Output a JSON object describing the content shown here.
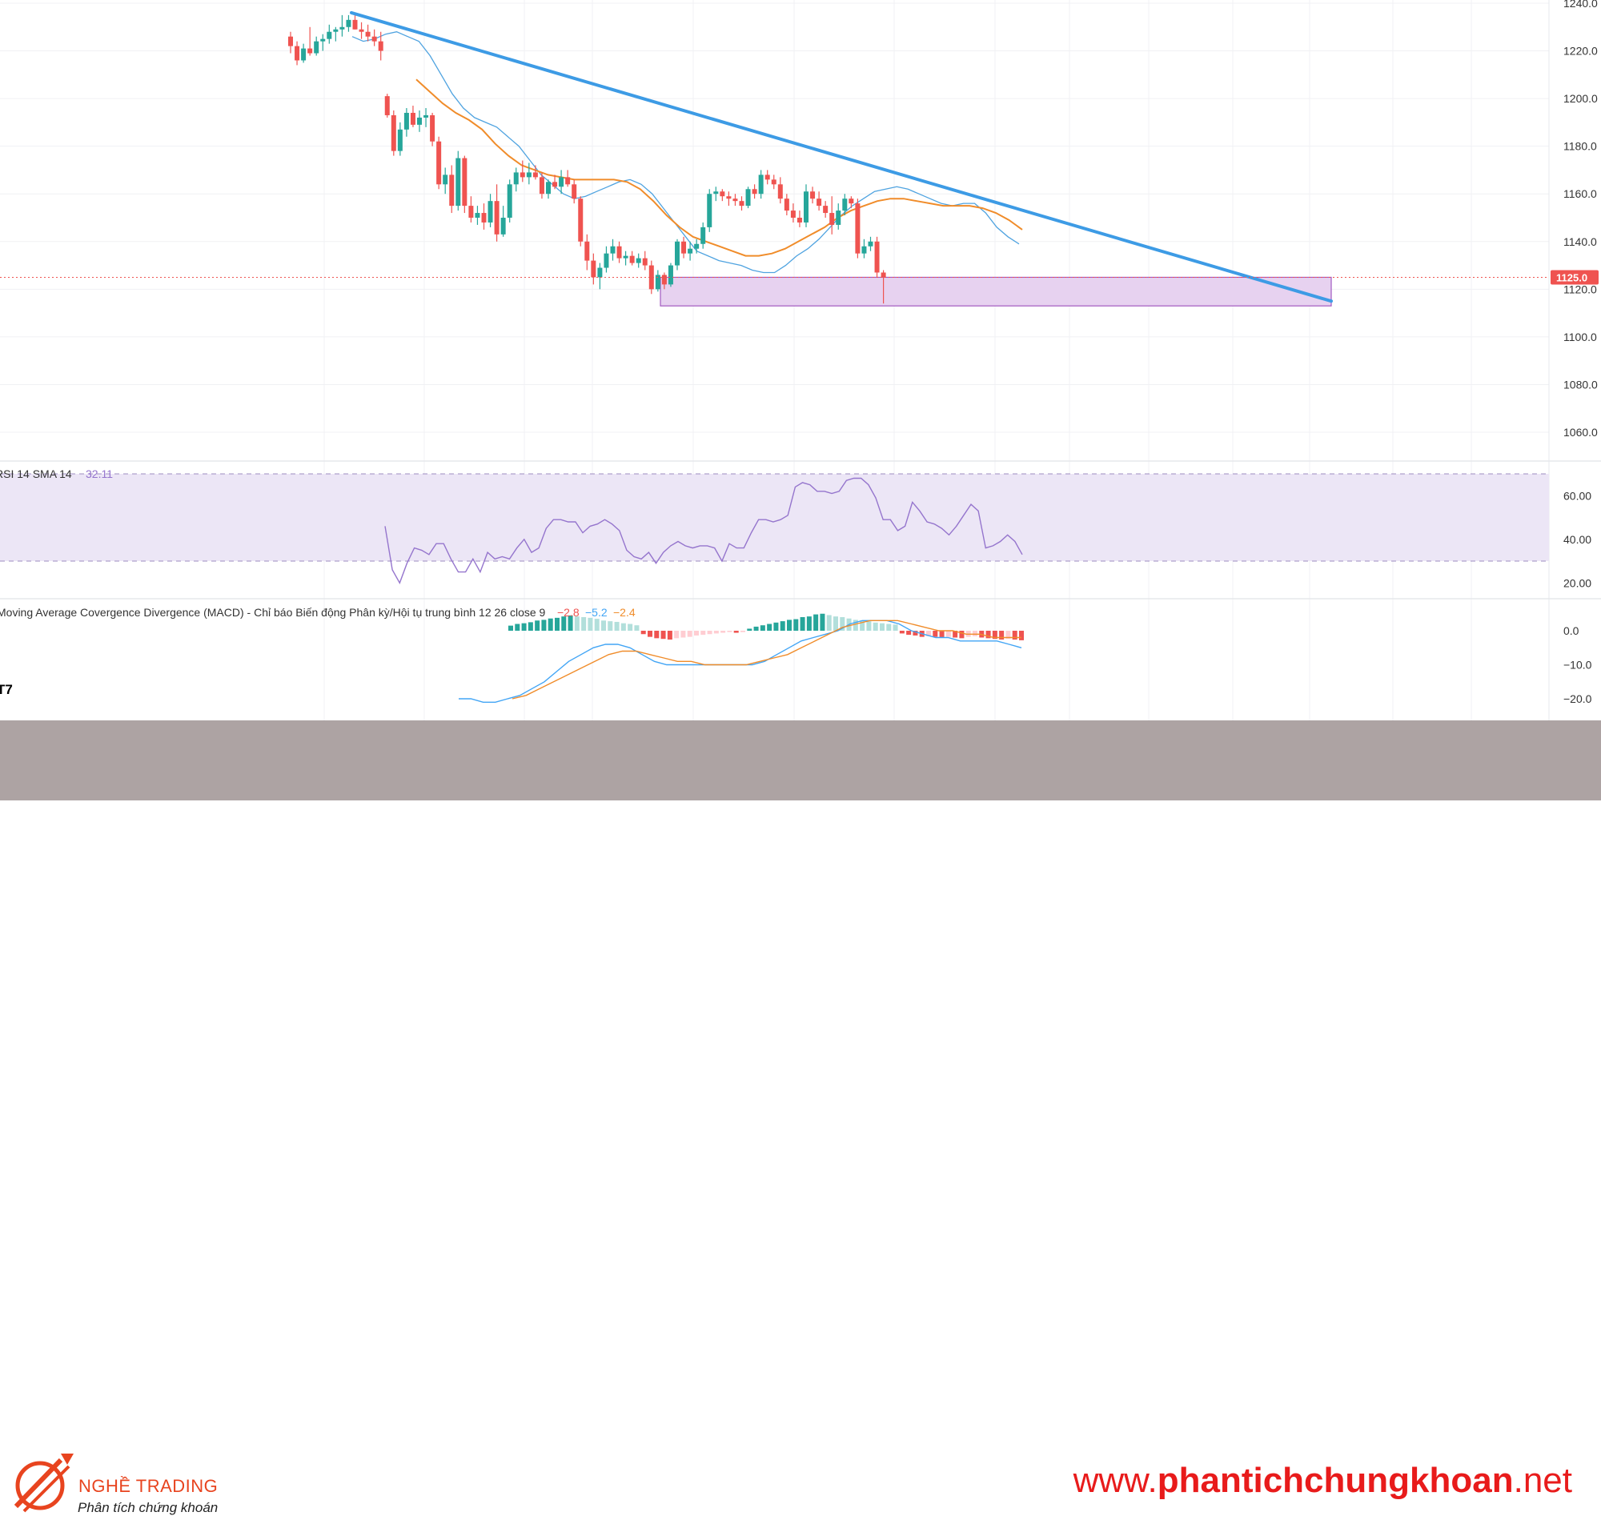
{
  "chart_data": {
    "type": "candlestick",
    "main": {
      "y_ticks": [
        "1240.0",
        "1220.0",
        "1200.0",
        "1180.0",
        "1160.0",
        "1140.0",
        "1120.0",
        "1100.0",
        "1080.0",
        "1060.0"
      ],
      "ylim": [
        1048,
        1242
      ],
      "last_price_label": "1125.0",
      "last_price": 1125,
      "candles": [
        [
          1226,
          1228,
          1219,
          1222
        ],
        [
          1222,
          1224,
          1214,
          1216
        ],
        [
          1216,
          1223,
          1215,
          1221
        ],
        [
          1221,
          1230,
          1218,
          1219
        ],
        [
          1219,
          1226,
          1218,
          1224
        ],
        [
          1224,
          1227,
          1220,
          1225
        ],
        [
          1225,
          1231,
          1223,
          1228
        ],
        [
          1228,
          1230,
          1224,
          1229
        ],
        [
          1229,
          1235,
          1226,
          1230
        ],
        [
          1230,
          1235,
          1228,
          1233
        ],
        [
          1233,
          1236,
          1229,
          1229
        ],
        [
          1229,
          1232,
          1225,
          1228
        ],
        [
          1228,
          1231,
          1224,
          1226
        ],
        [
          1226,
          1229,
          1222,
          1224
        ],
        [
          1224,
          1228,
          1216,
          1220
        ],
        [
          1201,
          1202,
          1192,
          1193
        ],
        [
          1193,
          1195,
          1176,
          1178
        ],
        [
          1178,
          1190,
          1176,
          1187
        ],
        [
          1187,
          1196,
          1184,
          1194
        ],
        [
          1194,
          1197,
          1188,
          1189
        ],
        [
          1189,
          1195,
          1186,
          1192
        ],
        [
          1192,
          1196,
          1188,
          1193
        ],
        [
          1193,
          1194,
          1180,
          1182
        ],
        [
          1182,
          1184,
          1162,
          1164
        ],
        [
          1164,
          1171,
          1160,
          1168
        ],
        [
          1168,
          1172,
          1152,
          1155
        ],
        [
          1155,
          1178,
          1153,
          1175
        ],
        [
          1175,
          1176,
          1152,
          1155
        ],
        [
          1155,
          1159,
          1148,
          1150
        ],
        [
          1150,
          1155,
          1147,
          1152
        ],
        [
          1152,
          1156,
          1145,
          1148
        ],
        [
          1148,
          1160,
          1146,
          1157
        ],
        [
          1157,
          1164,
          1140,
          1143
        ],
        [
          1143,
          1155,
          1142,
          1150
        ],
        [
          1150,
          1166,
          1148,
          1164
        ],
        [
          1164,
          1171,
          1161,
          1169
        ],
        [
          1169,
          1174,
          1165,
          1167
        ],
        [
          1167,
          1173,
          1164,
          1169
        ],
        [
          1169,
          1172,
          1166,
          1167
        ],
        [
          1167,
          1169,
          1158,
          1160
        ],
        [
          1160,
          1166,
          1158,
          1165
        ],
        [
          1165,
          1168,
          1162,
          1163
        ],
        [
          1163,
          1170,
          1160,
          1167
        ],
        [
          1167,
          1170,
          1163,
          1164
        ],
        [
          1164,
          1166,
          1156,
          1158
        ],
        [
          1158,
          1159,
          1138,
          1140
        ],
        [
          1140,
          1143,
          1128,
          1132
        ],
        [
          1132,
          1135,
          1122,
          1125
        ],
        [
          1125,
          1131,
          1120,
          1129
        ],
        [
          1129,
          1138,
          1127,
          1135
        ],
        [
          1135,
          1141,
          1132,
          1138
        ],
        [
          1138,
          1140,
          1131,
          1133
        ],
        [
          1133,
          1136,
          1130,
          1134
        ],
        [
          1134,
          1136,
          1130,
          1131
        ],
        [
          1131,
          1135,
          1129,
          1133
        ],
        [
          1133,
          1136,
          1128,
          1130
        ],
        [
          1130,
          1132,
          1118,
          1120
        ],
        [
          1120,
          1128,
          1119,
          1126
        ],
        [
          1126,
          1127,
          1120,
          1122
        ],
        [
          1122,
          1131,
          1121,
          1130
        ],
        [
          1130,
          1141,
          1128,
          1140
        ],
        [
          1140,
          1142,
          1133,
          1135
        ],
        [
          1135,
          1140,
          1132,
          1137
        ],
        [
          1137,
          1141,
          1135,
          1139
        ],
        [
          1139,
          1148,
          1137,
          1146
        ],
        [
          1146,
          1162,
          1144,
          1160
        ],
        [
          1160,
          1163,
          1157,
          1161
        ],
        [
          1161,
          1162,
          1157,
          1159
        ],
        [
          1159,
          1161,
          1155,
          1158
        ],
        [
          1158,
          1160,
          1155,
          1157
        ],
        [
          1157,
          1159,
          1153,
          1155
        ],
        [
          1155,
          1163,
          1154,
          1162
        ],
        [
          1162,
          1164,
          1158,
          1160
        ],
        [
          1160,
          1170,
          1158,
          1168
        ],
        [
          1168,
          1170,
          1164,
          1166
        ],
        [
          1166,
          1168,
          1162,
          1164
        ],
        [
          1164,
          1167,
          1156,
          1158
        ],
        [
          1158,
          1160,
          1151,
          1153
        ],
        [
          1153,
          1156,
          1148,
          1150
        ],
        [
          1150,
          1153,
          1146,
          1148
        ],
        [
          1148,
          1164,
          1146,
          1161
        ],
        [
          1161,
          1163,
          1156,
          1158
        ],
        [
          1158,
          1161,
          1153,
          1155
        ],
        [
          1155,
          1157,
          1150,
          1152
        ],
        [
          1152,
          1159,
          1143,
          1147
        ],
        [
          1147,
          1156,
          1145,
          1153
        ],
        [
          1153,
          1160,
          1151,
          1158
        ],
        [
          1158,
          1159,
          1154,
          1156
        ],
        [
          1156,
          1158,
          1133,
          1135
        ],
        [
          1135,
          1141,
          1133,
          1138
        ],
        [
          1138,
          1142,
          1136,
          1140
        ],
        [
          1140,
          1142,
          1125,
          1127
        ],
        [
          1127,
          1128,
          1114,
          1125
        ]
      ],
      "ma_fast": [
        1226,
        1224,
        1225,
        1227,
        1228,
        1226,
        1224,
        1218,
        1210,
        1202,
        1196,
        1192,
        1190,
        1188,
        1184,
        1180,
        1174,
        1168,
        1164,
        1160,
        1158,
        1159,
        1161,
        1163,
        1165,
        1166,
        1164,
        1160,
        1154,
        1148,
        1142,
        1136,
        1134,
        1132,
        1131,
        1130,
        1128,
        1127,
        1127,
        1130,
        1134,
        1137,
        1141,
        1146,
        1151,
        1155,
        1158,
        1161,
        1162,
        1163,
        1162,
        1160,
        1158,
        1156,
        1155,
        1156,
        1156,
        1152,
        1146,
        1142,
        1139
      ],
      "ma_slow": [
        1208,
        1203,
        1198,
        1194,
        1191,
        1187,
        1181,
        1176,
        1172,
        1170,
        1168,
        1167,
        1166,
        1166,
        1166,
        1166,
        1165,
        1162,
        1157,
        1151,
        1146,
        1142,
        1140,
        1138,
        1136,
        1134,
        1134,
        1135,
        1137,
        1140,
        1143,
        1146,
        1150,
        1153,
        1155,
        1157,
        1158,
        1158,
        1157,
        1156,
        1155,
        1155,
        1155,
        1154,
        1152,
        1149,
        1145
      ],
      "trend_line": [
        [
          0,
          1236
        ],
        [
          1,
          1115
        ]
      ],
      "support_zone": {
        "top": 1125,
        "bottom": 1113
      }
    },
    "rsi": {
      "label": "RSI 14 SMA 14",
      "value": "32.11",
      "y_ticks": [
        "60.00",
        "40.00",
        "20.00"
      ],
      "upper": 70,
      "lower": 30,
      "values": [
        46,
        26,
        20,
        29,
        36,
        35,
        33,
        38,
        38,
        31,
        25,
        25,
        31,
        25,
        34,
        31,
        32,
        31,
        36,
        40,
        34,
        36,
        45,
        49,
        49,
        48,
        48,
        43,
        46,
        47,
        49,
        47,
        44,
        35,
        32,
        31,
        34,
        29,
        34,
        37,
        39,
        37,
        36,
        37,
        37,
        36,
        30,
        38,
        36,
        36,
        43,
        49,
        49,
        48,
        49,
        51,
        64,
        66,
        65,
        62,
        62,
        61,
        62,
        67,
        68,
        68,
        65,
        59,
        49,
        49,
        44,
        46,
        57,
        53,
        48,
        47,
        45,
        42,
        46,
        51,
        56,
        53,
        36,
        37,
        39,
        42,
        39,
        33
      ]
    },
    "macd": {
      "label": "Moving Average Covergence Divergence (MACD) - Chỉ báo Biến động Phân kỳ/Hội tụ trung bình 12 26 close 9",
      "values": [
        "−2.8",
        "−5.2",
        "−2.4"
      ],
      "y_ticks": [
        "0.0",
        "−10.0",
        "−20.0"
      ],
      "histogram": [
        1.5,
        2,
        2.2,
        2.5,
        3,
        3.2,
        3.6,
        3.8,
        4.2,
        4.5,
        4.2,
        4,
        3.8,
        3.5,
        3,
        2.8,
        2.6,
        2.2,
        2,
        1.6,
        -1,
        -1.8,
        -2.2,
        -2.4,
        -2.6,
        -2.2,
        -2,
        -1.8,
        -1.4,
        -1.2,
        -1,
        -0.8,
        -0.6,
        -0.4,
        -0.6,
        -0.4,
        0.6,
        1.2,
        1.6,
        2,
        2.4,
        2.8,
        3.2,
        3.4,
        4,
        4.2,
        4.8,
        5,
        4.6,
        4.2,
        4,
        3.6,
        3.2,
        3,
        2.8,
        2.4,
        2.2,
        2,
        1.8,
        -0.8,
        -1.2,
        -1.4,
        -1.8,
        -1.6,
        -1.8,
        -2,
        -1.8,
        -2,
        -2.2,
        -1.8,
        -1.6,
        -2,
        -2.2,
        -2.4,
        -2.6,
        -2.4,
        -2.6,
        -2.8
      ],
      "macd_line": [
        -20,
        -20,
        -21,
        -21,
        -20,
        -19,
        -17,
        -15,
        -12,
        -9,
        -7,
        -5,
        -4,
        -4,
        -5,
        -7,
        -9,
        -10,
        -10,
        -10,
        -10,
        -10,
        -10,
        -10,
        -10,
        -9,
        -7,
        -5,
        -3,
        -2,
        -1,
        0,
        2,
        3,
        3,
        3,
        2,
        0,
        -1,
        -2,
        -2,
        -3,
        -3,
        -3,
        -3,
        -4,
        -5
      ],
      "signal_line": [
        -20,
        -19,
        -17,
        -15,
        -13,
        -11,
        -9,
        -7,
        -6,
        -6,
        -7,
        -8,
        -9,
        -9,
        -10,
        -10,
        -10,
        -10,
        -9,
        -8,
        -7,
        -5,
        -3,
        -1,
        1,
        2,
        3,
        3,
        3,
        2,
        1,
        0,
        0,
        -1,
        -1,
        -2,
        -2,
        -2
      ]
    }
  }
}
